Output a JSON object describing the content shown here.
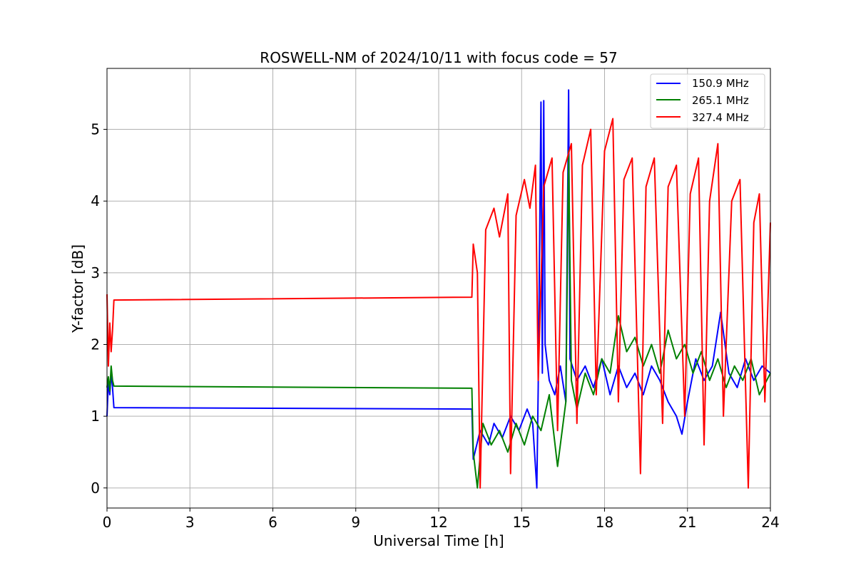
{
  "chart_data": {
    "type": "line",
    "title": "ROSWELL-NM of 2024/10/11 with focus code = 57",
    "xlabel": "Universal Time [h]",
    "ylabel": "Y-factor [dB]",
    "xlim": [
      0,
      24
    ],
    "ylim": [
      -0.28,
      5.85
    ],
    "xticks": [
      "0",
      "3",
      "6",
      "9",
      "12",
      "15",
      "18",
      "21",
      "24"
    ],
    "yticks": [
      "0",
      "1",
      "2",
      "3",
      "4",
      "5"
    ],
    "grid": true,
    "legend_position": "upper right",
    "series": [
      {
        "name": "150.9 MHz",
        "color": "#0000ff",
        "points": [
          [
            0.0,
            1.0
          ],
          [
            0.05,
            1.5
          ],
          [
            0.1,
            1.3
          ],
          [
            0.15,
            1.6
          ],
          [
            0.2,
            1.4
          ],
          [
            0.25,
            1.12
          ],
          [
            13.2,
            1.1
          ],
          [
            13.25,
            0.4
          ],
          [
            13.5,
            0.8
          ],
          [
            13.8,
            0.6
          ],
          [
            14.0,
            0.9
          ],
          [
            14.3,
            0.7
          ],
          [
            14.6,
            1.0
          ],
          [
            14.9,
            0.8
          ],
          [
            15.2,
            1.1
          ],
          [
            15.4,
            0.9
          ],
          [
            15.55,
            0.0
          ],
          [
            15.6,
            1.4
          ],
          [
            15.7,
            5.38
          ],
          [
            15.75,
            1.6
          ],
          [
            15.8,
            5.4
          ],
          [
            15.85,
            2.0
          ],
          [
            16.0,
            1.5
          ],
          [
            16.2,
            1.3
          ],
          [
            16.4,
            1.7
          ],
          [
            16.6,
            1.2
          ],
          [
            16.7,
            5.55
          ],
          [
            16.75,
            1.8
          ],
          [
            17.0,
            1.5
          ],
          [
            17.3,
            1.7
          ],
          [
            17.6,
            1.4
          ],
          [
            17.9,
            1.8
          ],
          [
            18.2,
            1.3
          ],
          [
            18.5,
            1.7
          ],
          [
            18.8,
            1.4
          ],
          [
            19.1,
            1.6
          ],
          [
            19.4,
            1.3
          ],
          [
            19.7,
            1.7
          ],
          [
            20.0,
            1.5
          ],
          [
            20.3,
            1.2
          ],
          [
            20.6,
            1.0
          ],
          [
            20.8,
            0.75
          ],
          [
            21.0,
            1.2
          ],
          [
            21.3,
            1.8
          ],
          [
            21.6,
            1.5
          ],
          [
            21.9,
            1.7
          ],
          [
            22.2,
            2.45
          ],
          [
            22.5,
            1.6
          ],
          [
            22.8,
            1.4
          ],
          [
            23.1,
            1.8
          ],
          [
            23.4,
            1.5
          ],
          [
            23.7,
            1.7
          ],
          [
            24.0,
            1.6
          ]
        ]
      },
      {
        "name": "265.1 MHz",
        "color": "#008000",
        "points": [
          [
            0.0,
            1.4
          ],
          [
            0.05,
            1.55
          ],
          [
            0.1,
            1.35
          ],
          [
            0.15,
            1.7
          ],
          [
            0.2,
            1.5
          ],
          [
            0.25,
            1.42
          ],
          [
            13.2,
            1.39
          ],
          [
            13.25,
            0.5
          ],
          [
            13.4,
            0.0
          ],
          [
            13.6,
            0.9
          ],
          [
            13.9,
            0.6
          ],
          [
            14.2,
            0.8
          ],
          [
            14.5,
            0.5
          ],
          [
            14.8,
            0.9
          ],
          [
            15.1,
            0.6
          ],
          [
            15.4,
            1.0
          ],
          [
            15.7,
            0.8
          ],
          [
            16.0,
            1.3
          ],
          [
            16.3,
            0.3
          ],
          [
            16.6,
            1.2
          ],
          [
            16.7,
            4.7
          ],
          [
            16.8,
            1.5
          ],
          [
            17.0,
            1.1
          ],
          [
            17.3,
            1.6
          ],
          [
            17.6,
            1.3
          ],
          [
            17.9,
            1.8
          ],
          [
            18.2,
            1.6
          ],
          [
            18.5,
            2.4
          ],
          [
            18.8,
            1.9
          ],
          [
            19.1,
            2.1
          ],
          [
            19.4,
            1.7
          ],
          [
            19.7,
            2.0
          ],
          [
            20.0,
            1.6
          ],
          [
            20.3,
            2.2
          ],
          [
            20.6,
            1.8
          ],
          [
            20.9,
            2.0
          ],
          [
            21.2,
            1.6
          ],
          [
            21.5,
            1.9
          ],
          [
            21.8,
            1.5
          ],
          [
            22.1,
            1.8
          ],
          [
            22.4,
            1.4
          ],
          [
            22.7,
            1.7
          ],
          [
            23.0,
            1.5
          ],
          [
            23.3,
            1.8
          ],
          [
            23.6,
            1.3
          ],
          [
            24.0,
            1.6
          ]
        ]
      },
      {
        "name": "327.4 MHz",
        "color": "#ff0000",
        "points": [
          [
            0.0,
            2.7
          ],
          [
            0.05,
            1.7
          ],
          [
            0.1,
            2.3
          ],
          [
            0.15,
            1.9
          ],
          [
            0.2,
            2.2
          ],
          [
            0.25,
            2.62
          ],
          [
            13.2,
            2.66
          ],
          [
            13.25,
            3.4
          ],
          [
            13.4,
            3.0
          ],
          [
            13.5,
            0.0
          ],
          [
            13.7,
            3.6
          ],
          [
            14.0,
            3.9
          ],
          [
            14.2,
            3.5
          ],
          [
            14.5,
            4.1
          ],
          [
            14.6,
            0.2
          ],
          [
            14.8,
            3.8
          ],
          [
            15.1,
            4.3
          ],
          [
            15.3,
            3.9
          ],
          [
            15.5,
            4.5
          ],
          [
            15.6,
            1.5
          ],
          [
            15.8,
            4.2
          ],
          [
            16.1,
            4.6
          ],
          [
            16.3,
            0.8
          ],
          [
            16.5,
            4.4
          ],
          [
            16.8,
            4.8
          ],
          [
            17.0,
            0.9
          ],
          [
            17.2,
            4.5
          ],
          [
            17.5,
            5.0
          ],
          [
            17.7,
            1.3
          ],
          [
            18.0,
            4.7
          ],
          [
            18.3,
            5.15
          ],
          [
            18.5,
            1.2
          ],
          [
            18.7,
            4.3
          ],
          [
            19.0,
            4.6
          ],
          [
            19.3,
            0.2
          ],
          [
            19.5,
            4.2
          ],
          [
            19.8,
            4.6
          ],
          [
            20.1,
            0.9
          ],
          [
            20.3,
            4.2
          ],
          [
            20.6,
            4.5
          ],
          [
            20.9,
            1.0
          ],
          [
            21.1,
            4.1
          ],
          [
            21.4,
            4.6
          ],
          [
            21.6,
            0.6
          ],
          [
            21.8,
            4.0
          ],
          [
            22.1,
            4.8
          ],
          [
            22.3,
            1.0
          ],
          [
            22.6,
            4.0
          ],
          [
            22.9,
            4.3
          ],
          [
            23.2,
            0.0
          ],
          [
            23.4,
            3.7
          ],
          [
            23.6,
            4.1
          ],
          [
            23.8,
            1.2
          ],
          [
            24.0,
            3.7
          ]
        ]
      }
    ]
  }
}
